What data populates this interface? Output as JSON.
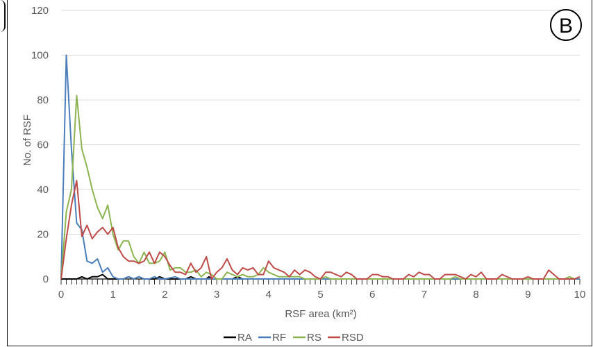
{
  "panel_label": "B",
  "chart_data": {
    "type": "line",
    "title": "",
    "xlabel": "RSF area (km²)",
    "ylabel": "No. of RSF",
    "xlim": [
      0,
      10
    ],
    "ylim": [
      0,
      120
    ],
    "xticks": [
      "0",
      "1",
      "2",
      "3",
      "4",
      "5",
      "6",
      "7",
      "8",
      "9",
      "10"
    ],
    "yticks": [
      "0",
      "20",
      "40",
      "60",
      "80",
      "100",
      "120"
    ],
    "grid": "horizontal",
    "legend_position": "bottom",
    "series": [
      {
        "name": "RA",
        "color": "#000000",
        "points": [
          [
            0,
            0
          ],
          [
            0.3,
            0
          ],
          [
            0.4,
            1
          ],
          [
            0.5,
            0
          ],
          [
            0.6,
            1
          ],
          [
            0.7,
            1
          ],
          [
            0.8,
            2
          ],
          [
            0.9,
            0
          ],
          [
            1.0,
            0
          ],
          [
            1.2,
            0
          ],
          [
            1.3,
            1
          ],
          [
            1.4,
            0
          ],
          [
            1.5,
            1
          ],
          [
            1.6,
            0
          ],
          [
            1.8,
            0
          ],
          [
            1.9,
            1
          ],
          [
            2.0,
            0
          ],
          [
            2.4,
            0
          ],
          [
            2.5,
            1
          ],
          [
            2.6,
            0
          ],
          [
            2.8,
            0
          ],
          [
            2.85,
            1
          ],
          [
            2.9,
            0
          ],
          [
            3.3,
            0
          ],
          [
            3.4,
            1
          ],
          [
            3.5,
            0
          ],
          [
            10,
            0
          ]
        ]
      },
      {
        "name": "RF",
        "color": "#4A7EBB",
        "points": [
          [
            0,
            0
          ],
          [
            0.1,
            100
          ],
          [
            0.2,
            58
          ],
          [
            0.3,
            25
          ],
          [
            0.4,
            22
          ],
          [
            0.5,
            8
          ],
          [
            0.6,
            7
          ],
          [
            0.7,
            9
          ],
          [
            0.8,
            3
          ],
          [
            0.9,
            5
          ],
          [
            1.0,
            1
          ],
          [
            1.1,
            0
          ],
          [
            1.2,
            0
          ],
          [
            1.3,
            1
          ],
          [
            1.4,
            0
          ],
          [
            1.5,
            1
          ],
          [
            1.6,
            0
          ],
          [
            1.7,
            0
          ],
          [
            1.8,
            1
          ],
          [
            1.9,
            0
          ],
          [
            2.0,
            0
          ],
          [
            2.2,
            1
          ],
          [
            2.3,
            0
          ],
          [
            10,
            0
          ]
        ]
      },
      {
        "name": "RS",
        "color": "#8CB450",
        "points": [
          [
            0,
            0
          ],
          [
            0.1,
            30
          ],
          [
            0.2,
            40
          ],
          [
            0.3,
            82
          ],
          [
            0.4,
            58
          ],
          [
            0.5,
            50
          ],
          [
            0.6,
            40
          ],
          [
            0.7,
            32
          ],
          [
            0.8,
            27
          ],
          [
            0.9,
            33
          ],
          [
            1.0,
            20
          ],
          [
            1.1,
            13
          ],
          [
            1.2,
            17
          ],
          [
            1.3,
            17
          ],
          [
            1.4,
            10
          ],
          [
            1.5,
            7
          ],
          [
            1.6,
            12
          ],
          [
            1.7,
            7
          ],
          [
            1.8,
            7
          ],
          [
            1.9,
            8
          ],
          [
            2.0,
            12
          ],
          [
            2.1,
            4
          ],
          [
            2.2,
            5
          ],
          [
            2.3,
            5
          ],
          [
            2.4,
            3
          ],
          [
            2.5,
            3
          ],
          [
            2.6,
            4
          ],
          [
            2.7,
            1
          ],
          [
            2.8,
            3
          ],
          [
            2.9,
            2
          ],
          [
            3.0,
            0
          ],
          [
            3.1,
            0
          ],
          [
            3.2,
            3
          ],
          [
            3.3,
            2
          ],
          [
            3.4,
            1
          ],
          [
            3.5,
            2
          ],
          [
            3.6,
            1
          ],
          [
            3.7,
            1
          ],
          [
            3.8,
            2
          ],
          [
            3.9,
            5
          ],
          [
            4.0,
            3
          ],
          [
            4.1,
            2
          ],
          [
            4.2,
            1
          ],
          [
            4.3,
            1
          ],
          [
            4.4,
            1
          ],
          [
            4.5,
            1
          ],
          [
            4.6,
            1
          ],
          [
            4.7,
            0
          ],
          [
            5.0,
            0
          ],
          [
            5.1,
            1
          ],
          [
            5.2,
            0
          ],
          [
            7.5,
            0
          ],
          [
            7.6,
            1
          ],
          [
            7.7,
            0
          ],
          [
            9.7,
            0
          ],
          [
            9.8,
            1
          ],
          [
            9.9,
            0
          ],
          [
            10,
            1
          ]
        ]
      },
      {
        "name": "RSD",
        "color": "#BE4B48",
        "points": [
          [
            0,
            0
          ],
          [
            0.1,
            18
          ],
          [
            0.2,
            33
          ],
          [
            0.3,
            44
          ],
          [
            0.4,
            19
          ],
          [
            0.5,
            24
          ],
          [
            0.6,
            18
          ],
          [
            0.7,
            21
          ],
          [
            0.8,
            23
          ],
          [
            0.9,
            20
          ],
          [
            1.0,
            23
          ],
          [
            1.1,
            14
          ],
          [
            1.2,
            10
          ],
          [
            1.3,
            8
          ],
          [
            1.4,
            8
          ],
          [
            1.5,
            7
          ],
          [
            1.6,
            8
          ],
          [
            1.7,
            12
          ],
          [
            1.8,
            7
          ],
          [
            1.9,
            12
          ],
          [
            2.0,
            10
          ],
          [
            2.1,
            6
          ],
          [
            2.2,
            3
          ],
          [
            2.3,
            3
          ],
          [
            2.4,
            2
          ],
          [
            2.5,
            7
          ],
          [
            2.6,
            3
          ],
          [
            2.7,
            5
          ],
          [
            2.8,
            10
          ],
          [
            2.9,
            0
          ],
          [
            3.0,
            3
          ],
          [
            3.1,
            5
          ],
          [
            3.2,
            9
          ],
          [
            3.3,
            4
          ],
          [
            3.4,
            2
          ],
          [
            3.5,
            5
          ],
          [
            3.6,
            4
          ],
          [
            3.7,
            5
          ],
          [
            3.8,
            2
          ],
          [
            3.9,
            2
          ],
          [
            4.0,
            8
          ],
          [
            4.1,
            5
          ],
          [
            4.2,
            4
          ],
          [
            4.3,
            3
          ],
          [
            4.4,
            1
          ],
          [
            4.5,
            4
          ],
          [
            4.6,
            2
          ],
          [
            4.7,
            4
          ],
          [
            4.8,
            3
          ],
          [
            4.9,
            1
          ],
          [
            5.0,
            0
          ],
          [
            5.1,
            3
          ],
          [
            5.2,
            3
          ],
          [
            5.3,
            2
          ],
          [
            5.4,
            1
          ],
          [
            5.5,
            3
          ],
          [
            5.6,
            2
          ],
          [
            5.7,
            0
          ],
          [
            5.9,
            0
          ],
          [
            6.0,
            2
          ],
          [
            6.1,
            2
          ],
          [
            6.2,
            1
          ],
          [
            6.3,
            1
          ],
          [
            6.4,
            0
          ],
          [
            6.6,
            0
          ],
          [
            6.7,
            2
          ],
          [
            6.8,
            1
          ],
          [
            6.9,
            3
          ],
          [
            7.0,
            2
          ],
          [
            7.1,
            2
          ],
          [
            7.2,
            0
          ],
          [
            7.3,
            0
          ],
          [
            7.4,
            2
          ],
          [
            7.5,
            2
          ],
          [
            7.6,
            2
          ],
          [
            7.7,
            1
          ],
          [
            7.8,
            0
          ],
          [
            7.9,
            2
          ],
          [
            8.0,
            1
          ],
          [
            8.1,
            3
          ],
          [
            8.2,
            0
          ],
          [
            8.4,
            0
          ],
          [
            8.5,
            2
          ],
          [
            8.6,
            1
          ],
          [
            8.7,
            0
          ],
          [
            8.9,
            0
          ],
          [
            9.0,
            1
          ],
          [
            9.1,
            0
          ],
          [
            9.3,
            0
          ],
          [
            9.4,
            4
          ],
          [
            9.5,
            2
          ],
          [
            9.6,
            0
          ],
          [
            9.9,
            0
          ],
          [
            10,
            1
          ]
        ]
      }
    ]
  }
}
